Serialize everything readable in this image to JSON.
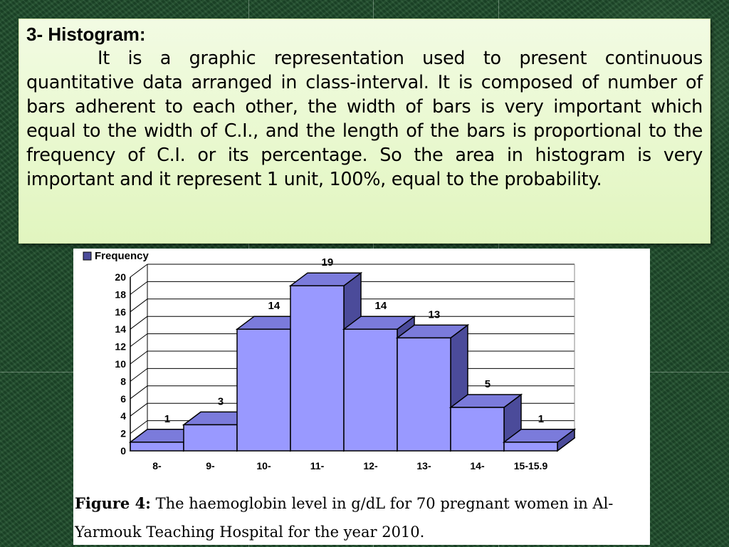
{
  "slide": {
    "heading": "3- Histogram:",
    "body": "It is a graphic representation used to present continuous quantitative data arranged in class-interval. It is composed of number of bars adherent to each other, the width of bars is very important which equal to the width of C.I., and the length of the bars is proportional to the frequency of C.I. or its percentage. So the area in histogram is very important and it represent 1 unit, 100%, equal to the probability."
  },
  "figure": {
    "caption_label": "Figure 4:",
    "caption_line1": "The haemoglobin level in g/dL for 70 pregnant women in Al-",
    "caption_line2": "Yarmouk Teaching Hospital for the year 2010."
  },
  "chart_data": {
    "type": "bar",
    "legend": "Frequency",
    "legend_position": "top-left",
    "categories": [
      "8-",
      "9-",
      "10-",
      "11-",
      "12-",
      "13-",
      "14-",
      "15-15.9"
    ],
    "series": [
      {
        "name": "Frequency",
        "values": [
          1,
          3,
          14,
          19,
          14,
          13,
          5,
          1
        ]
      }
    ],
    "ylim": [
      0,
      20
    ],
    "yticks": [
      0,
      2,
      4,
      6,
      8,
      10,
      12,
      14,
      16,
      18,
      20
    ],
    "grid": true,
    "bar_color": "#9999ff",
    "bar_side_color": "#4b4b9a",
    "bar_top_color": "#7b7bdb"
  }
}
